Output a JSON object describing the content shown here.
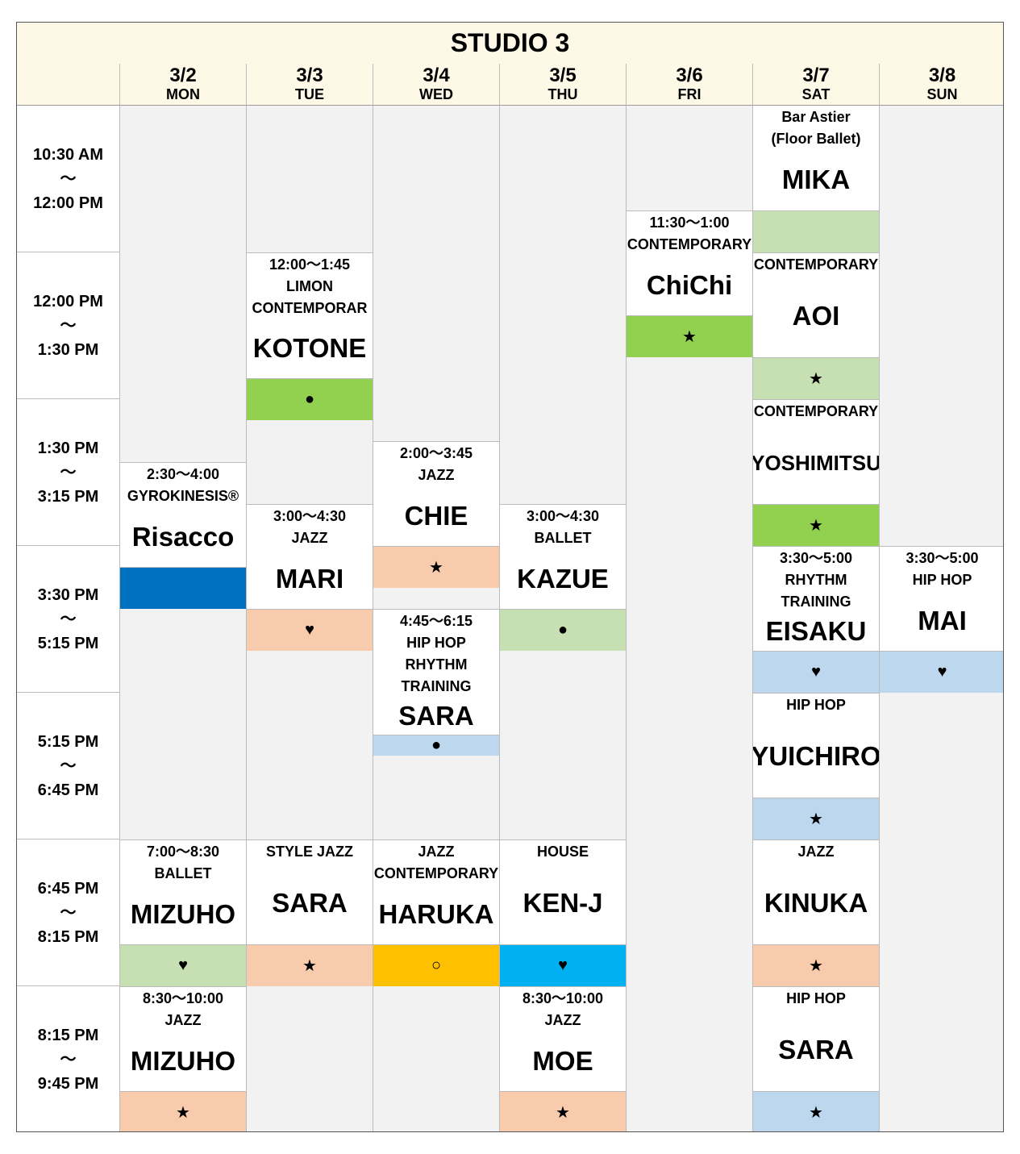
{
  "title": "STUDIO 3",
  "days": [
    {
      "date": "3/2",
      "dow": "MON"
    },
    {
      "date": "3/3",
      "dow": "TUE"
    },
    {
      "date": "3/4",
      "dow": "WED"
    },
    {
      "date": "3/5",
      "dow": "THU"
    },
    {
      "date": "3/6",
      "dow": "FRI"
    },
    {
      "date": "3/7",
      "dow": "SAT"
    },
    {
      "date": "3/8",
      "dow": "SUN"
    }
  ],
  "time_slots": [
    {
      "start": "10:30 AM",
      "sep": "～",
      "end": "12:00 PM"
    },
    {
      "start": "12:00 PM",
      "sep": "～",
      "end": "1:30 PM"
    },
    {
      "start": "1:30 PM",
      "sep": "～",
      "end": "3:15 PM"
    },
    {
      "start": "3:30 PM",
      "sep": "～",
      "end": "5:15 PM"
    },
    {
      "start": "5:15 PM",
      "sep": "～",
      "end": "6:45 PM"
    },
    {
      "start": "6:45 PM",
      "sep": "～",
      "end": "8:15 PM"
    },
    {
      "start": "8:15 PM",
      "sep": "～",
      "end": "9:45 PM"
    }
  ],
  "classes": [
    {
      "day": "SAT",
      "lines": [
        "Bar Astier",
        "(Floor Ballet)"
      ],
      "instructor": "MIKA",
      "symbol": "",
      "bar_color": "#c6e0b4"
    },
    {
      "day": "FRI",
      "lines": [
        "11:30～1:00",
        "CONTEMPORARY"
      ],
      "instructor": "ChiChi",
      "symbol": "★",
      "bar_color": "#92d050"
    },
    {
      "day": "TUE",
      "lines": [
        "12:00～1:45",
        "LIMON",
        "CONTEMPORAR"
      ],
      "instructor": "KOTONE",
      "symbol": "●",
      "bar_color": "#92d050"
    },
    {
      "day": "SAT",
      "lines": [
        "CONTEMPORARY"
      ],
      "instructor": "AOI",
      "symbol": "★",
      "bar_color": "#c6e0b4"
    },
    {
      "day": "SAT",
      "lines": [
        "CONTEMPORARY"
      ],
      "instructor": "YOSHIMITSU",
      "symbol": "★",
      "bar_color": "#92d050"
    },
    {
      "day": "WED",
      "lines": [
        "2:00～3:45",
        "JAZZ"
      ],
      "instructor": "CHIE",
      "symbol": "★",
      "bar_color": "#f8cbad"
    },
    {
      "day": "MON",
      "lines": [
        "2:30～4:00",
        "GYROKINESIS®"
      ],
      "instructor": "Risacco",
      "symbol": "",
      "bar_color": "#0070c0"
    },
    {
      "day": "TUE",
      "lines": [
        "3:00～4:30",
        "JAZZ"
      ],
      "instructor": "MARI",
      "symbol": "♥",
      "bar_color": "#f8cbad"
    },
    {
      "day": "THU",
      "lines": [
        "3:00～4:30",
        "BALLET"
      ],
      "instructor": "KAZUE",
      "symbol": "●",
      "bar_color": "#c6e0b4"
    },
    {
      "day": "SAT",
      "lines": [
        "3:30～5:00",
        "RHYTHM",
        "TRAINING"
      ],
      "instructor": "EISAKU",
      "symbol": "♥",
      "bar_color": "#bdd7ee"
    },
    {
      "day": "SUN",
      "lines": [
        "3:30～5:00",
        "HIP HOP"
      ],
      "instructor": "MAI",
      "symbol": "♥",
      "bar_color": "#bdd7ee"
    },
    {
      "day": "WED",
      "lines": [
        "4:45～6:15",
        "HIP HOP",
        "RHYTHM",
        "TRAINING"
      ],
      "instructor": "SARA",
      "symbol": "●",
      "bar_color": "#bdd7ee"
    },
    {
      "day": "SAT",
      "lines": [
        "HIP HOP"
      ],
      "instructor": "YUICHIRO",
      "symbol": "★",
      "bar_color": "#bdd7ee"
    },
    {
      "day": "MON",
      "lines": [
        "7:00～8:30",
        "BALLET"
      ],
      "instructor": "MIZUHO",
      "symbol": "♥",
      "bar_color": "#c6e0b4"
    },
    {
      "day": "TUE",
      "lines": [
        "STYLE JAZZ"
      ],
      "instructor": "SARA",
      "symbol": "★",
      "bar_color": "#f8cbad"
    },
    {
      "day": "WED",
      "lines": [
        "JAZZ",
        "CONTEMPORARY"
      ],
      "instructor": "HARUKA",
      "symbol": "○",
      "bar_color": "#ffc000"
    },
    {
      "day": "THU",
      "lines": [
        "HOUSE"
      ],
      "instructor": "KEN-J",
      "symbol": "♥",
      "bar_color": "#00b0f0"
    },
    {
      "day": "SAT",
      "lines": [
        "JAZZ"
      ],
      "instructor": "KINUKA",
      "symbol": "★",
      "bar_color": "#f8cbad"
    },
    {
      "day": "MON",
      "lines": [
        "8:30～10:00",
        "JAZZ"
      ],
      "instructor": "MIZUHO",
      "symbol": "★",
      "bar_color": "#f8cbad"
    },
    {
      "day": "THU",
      "lines": [
        "8:30～10:00",
        "JAZZ"
      ],
      "instructor": "MOE",
      "symbol": "★",
      "bar_color": "#f8cbad"
    },
    {
      "day": "SAT",
      "lines": [
        "HIP HOP"
      ],
      "instructor": "SARA",
      "symbol": "★",
      "bar_color": "#bdd7ee"
    }
  ]
}
